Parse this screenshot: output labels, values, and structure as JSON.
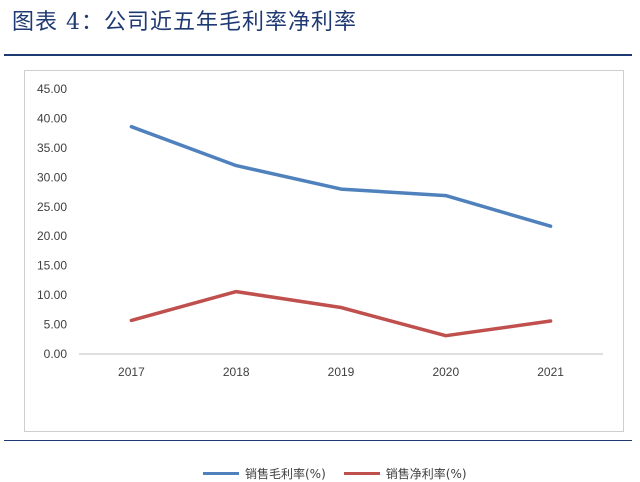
{
  "figure_title": "图表 4：公司近五年毛利率净利率",
  "chart_data": {
    "type": "line",
    "title": "",
    "xlabel": "",
    "ylabel": "",
    "categories": [
      "2017",
      "2018",
      "2019",
      "2020",
      "2021"
    ],
    "ylim": [
      0,
      45
    ],
    "yticks": [
      "0.00",
      "5.00",
      "10.00",
      "15.00",
      "20.00",
      "25.00",
      "30.00",
      "35.00",
      "40.00",
      "45.00"
    ],
    "grid": false,
    "legend_position": "bottom",
    "series": [
      {
        "name": "销售毛利率(%)",
        "color": "#4F81BD",
        "values": [
          38.6,
          32.0,
          28.0,
          26.9,
          21.7
        ]
      },
      {
        "name": "销售净利率(%)",
        "color": "#C0504D",
        "values": [
          5.7,
          10.6,
          7.9,
          3.1,
          5.6
        ]
      }
    ]
  }
}
